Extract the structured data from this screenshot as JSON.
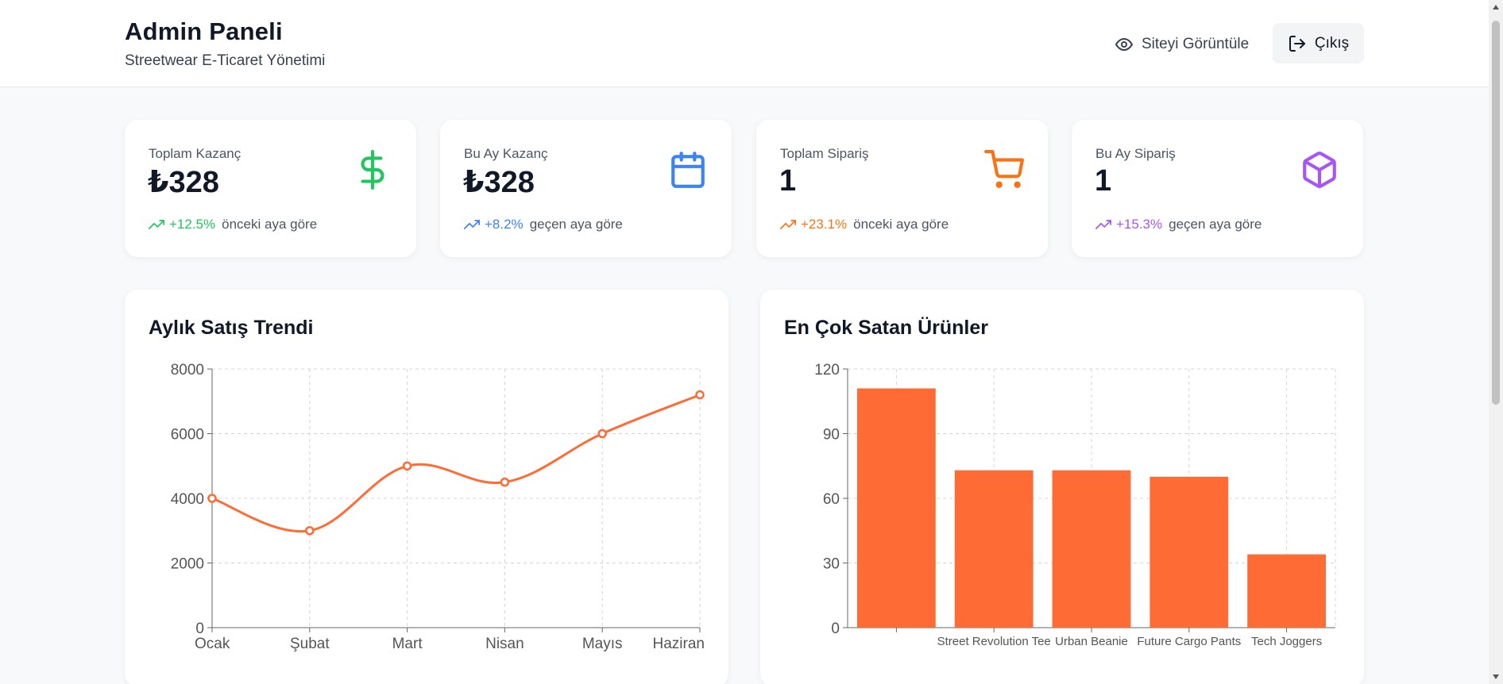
{
  "header": {
    "title": "Admin Paneli",
    "subtitle": "Streetwear E-Ticaret Yönetimi",
    "view_site_label": "Siteyi Görüntüle",
    "logout_label": "Çıkış"
  },
  "stats": [
    {
      "label": "Toplam Kazanç",
      "value": "₺328",
      "change": "+12.5%",
      "change_note": "önceki aya göre",
      "color": "#22c55e",
      "icon": "dollar-icon"
    },
    {
      "label": "Bu Ay Kazanç",
      "value": "₺328",
      "change": "+8.2%",
      "change_note": "geçen aya göre",
      "color": "#3b82f6",
      "icon": "calendar-icon"
    },
    {
      "label": "Toplam Sipariş",
      "value": "1",
      "change": "+23.1%",
      "change_note": "önceki aya göre",
      "color": "#f97316",
      "icon": "cart-icon"
    },
    {
      "label": "Bu Ay Sipariş",
      "value": "1",
      "change": "+15.3%",
      "change_note": "geçen aya göre",
      "color": "#a855f7",
      "icon": "box-icon"
    }
  ],
  "panels": {
    "sales_trend_title": "Aylık Satış Trendi",
    "top_products_title": "En Çok Satan Ürünler"
  },
  "chart_data": [
    {
      "type": "line",
      "title": "Aylık Satış Trendi",
      "categories": [
        "Ocak",
        "Şubat",
        "Mart",
        "Nisan",
        "Mayıs",
        "Haziran"
      ],
      "values": [
        4000,
        3000,
        5000,
        4500,
        6000,
        7200
      ],
      "yticks": [
        "0",
        "2000",
        "4000",
        "6000",
        "8000"
      ],
      "ylim": [
        0,
        8000
      ],
      "grid": true,
      "color": "#ff6b35"
    },
    {
      "type": "bar",
      "title": "En Çok Satan Ürünler",
      "categories": [
        "",
        "Street Revolution Tee",
        "Urban Beanie",
        "Future Cargo Pants",
        "Tech Joggers"
      ],
      "values": [
        111,
        73,
        73,
        70,
        34
      ],
      "yticks": [
        "0",
        "30",
        "60",
        "90",
        "120"
      ],
      "ylim": [
        0,
        120
      ],
      "grid": true,
      "color": "#ff6b35"
    }
  ]
}
